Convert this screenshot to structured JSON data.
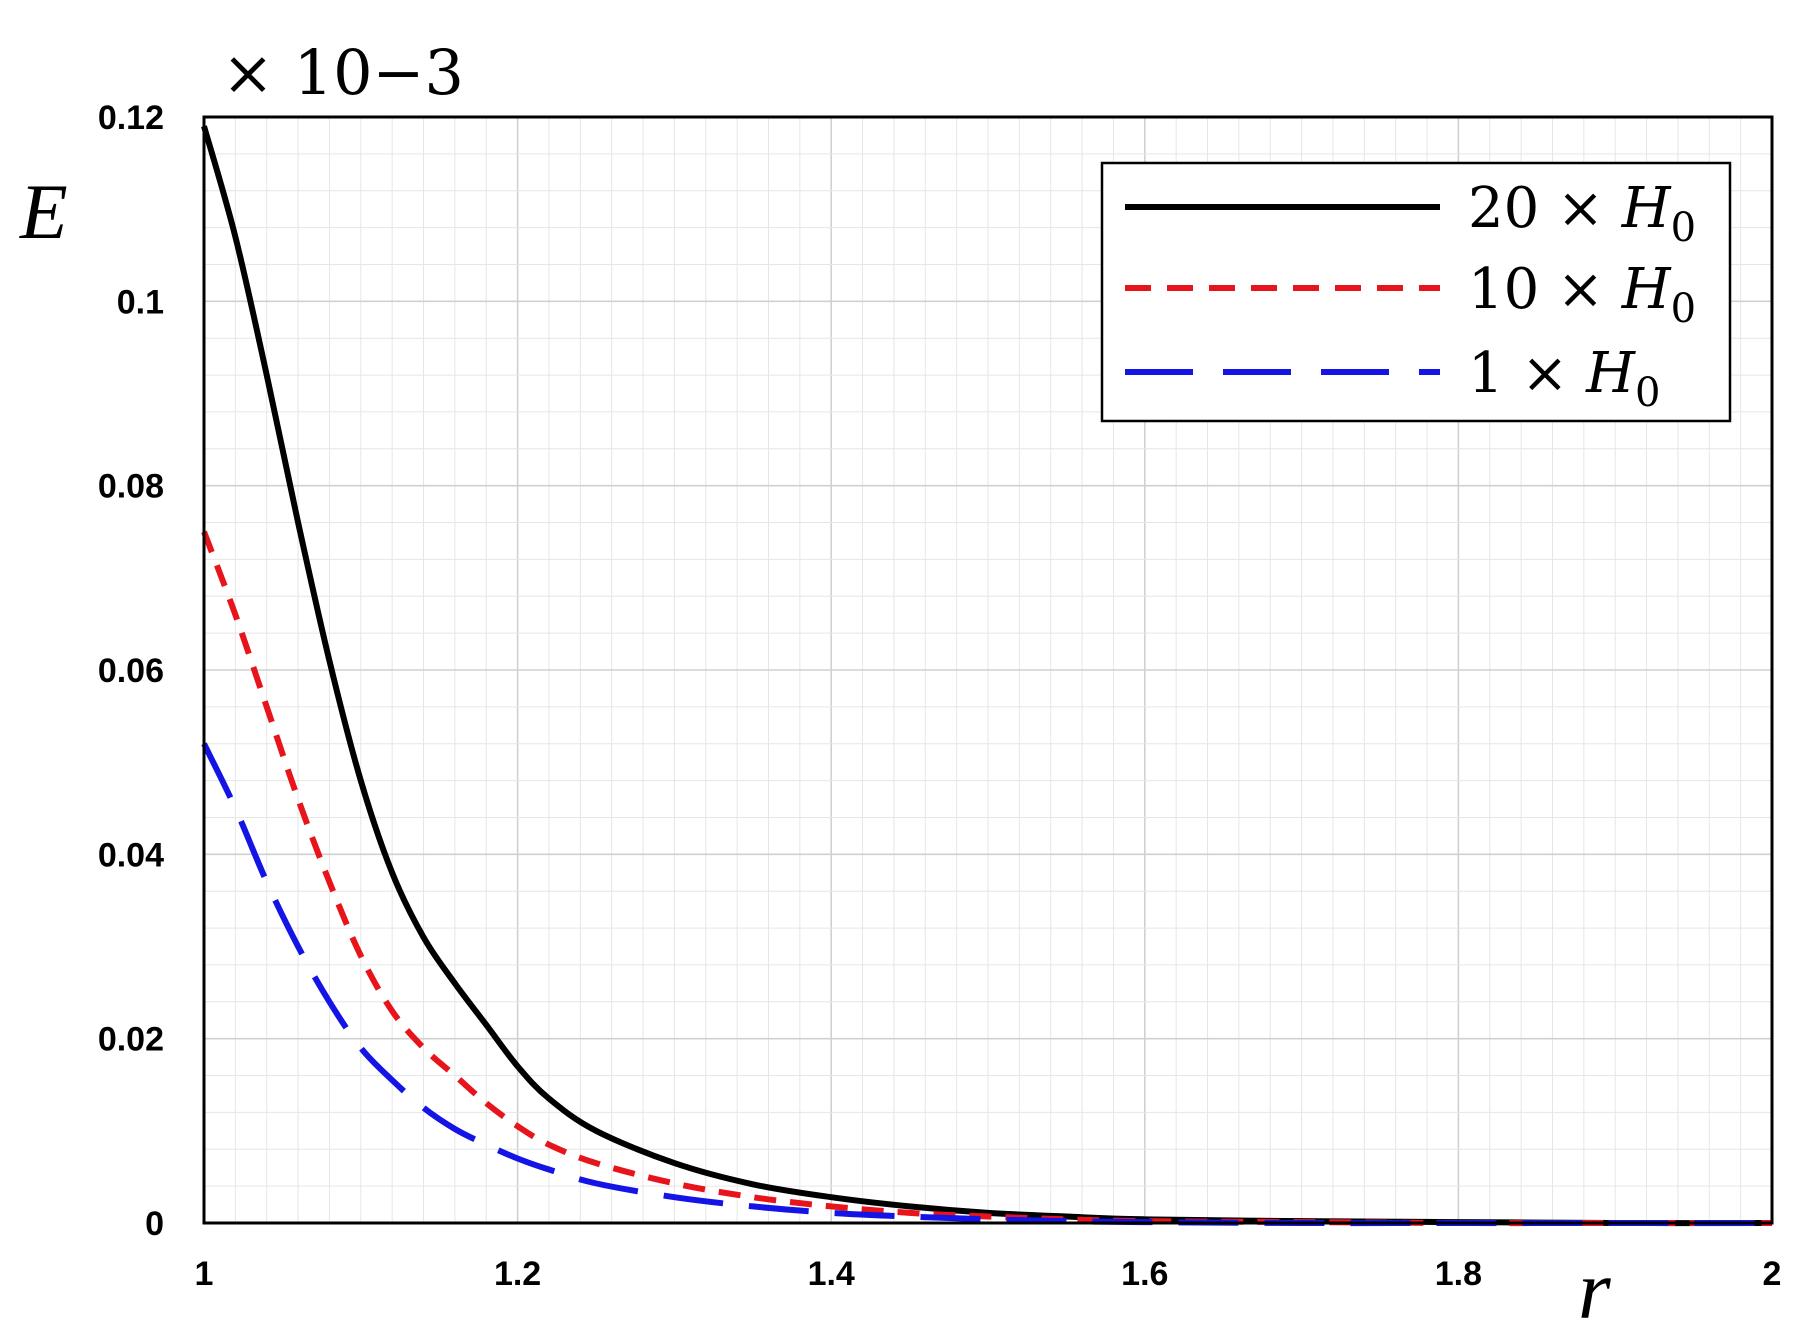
{
  "chart_data": {
    "type": "line",
    "xlabel": "r",
    "ylabel": "E",
    "y_multiplier": "× 10−3",
    "xlim": [
      1,
      2
    ],
    "ylim": [
      0,
      0.12
    ],
    "x_ticks": [
      "1",
      "1.2",
      "1.4",
      "1.6",
      "1.8",
      "2"
    ],
    "y_ticks": [
      "0",
      "0.02",
      "0.04",
      "0.06",
      "0.08",
      "0.1",
      "0.12"
    ],
    "grid": true,
    "legend_position": "top-right",
    "x": [
      1.0,
      1.02,
      1.04,
      1.06,
      1.08,
      1.1,
      1.12,
      1.14,
      1.16,
      1.18,
      1.2,
      1.22,
      1.25,
      1.3,
      1.35,
      1.4,
      1.45,
      1.5,
      1.55,
      1.6,
      1.7,
      1.8,
      1.9,
      2.0
    ],
    "series": [
      {
        "name": "20 × H",
        "subscript": "0",
        "color": "#000000",
        "dash": "solid",
        "values": [
          0.119,
          0.107,
          0.092,
          0.076,
          0.061,
          0.048,
          0.038,
          0.031,
          0.026,
          0.0215,
          0.017,
          0.0135,
          0.01,
          0.0065,
          0.0042,
          0.0028,
          0.0018,
          0.0011,
          0.0007,
          0.0004,
          0.0002,
          0.0001,
          0.0,
          0.0
        ]
      },
      {
        "name": "10 × H",
        "subscript": "0",
        "color": "#e8141b",
        "dash": "short",
        "values": [
          0.075,
          0.066,
          0.056,
          0.046,
          0.037,
          0.029,
          0.023,
          0.019,
          0.016,
          0.013,
          0.0105,
          0.0085,
          0.0065,
          0.0043,
          0.0028,
          0.0018,
          0.0011,
          0.0007,
          0.0004,
          0.0002,
          0.0001,
          0.0,
          0.0,
          0.0
        ]
      },
      {
        "name": "1 × H",
        "subscript": "0",
        "color": "#1414e6",
        "dash": "long",
        "values": [
          0.052,
          0.045,
          0.037,
          0.03,
          0.024,
          0.019,
          0.0155,
          0.0125,
          0.0102,
          0.0085,
          0.007,
          0.0058,
          0.0043,
          0.0028,
          0.0018,
          0.0011,
          0.0007,
          0.0004,
          0.0002,
          0.0001,
          0.0,
          0.0,
          0.0,
          0.0
        ]
      }
    ]
  }
}
